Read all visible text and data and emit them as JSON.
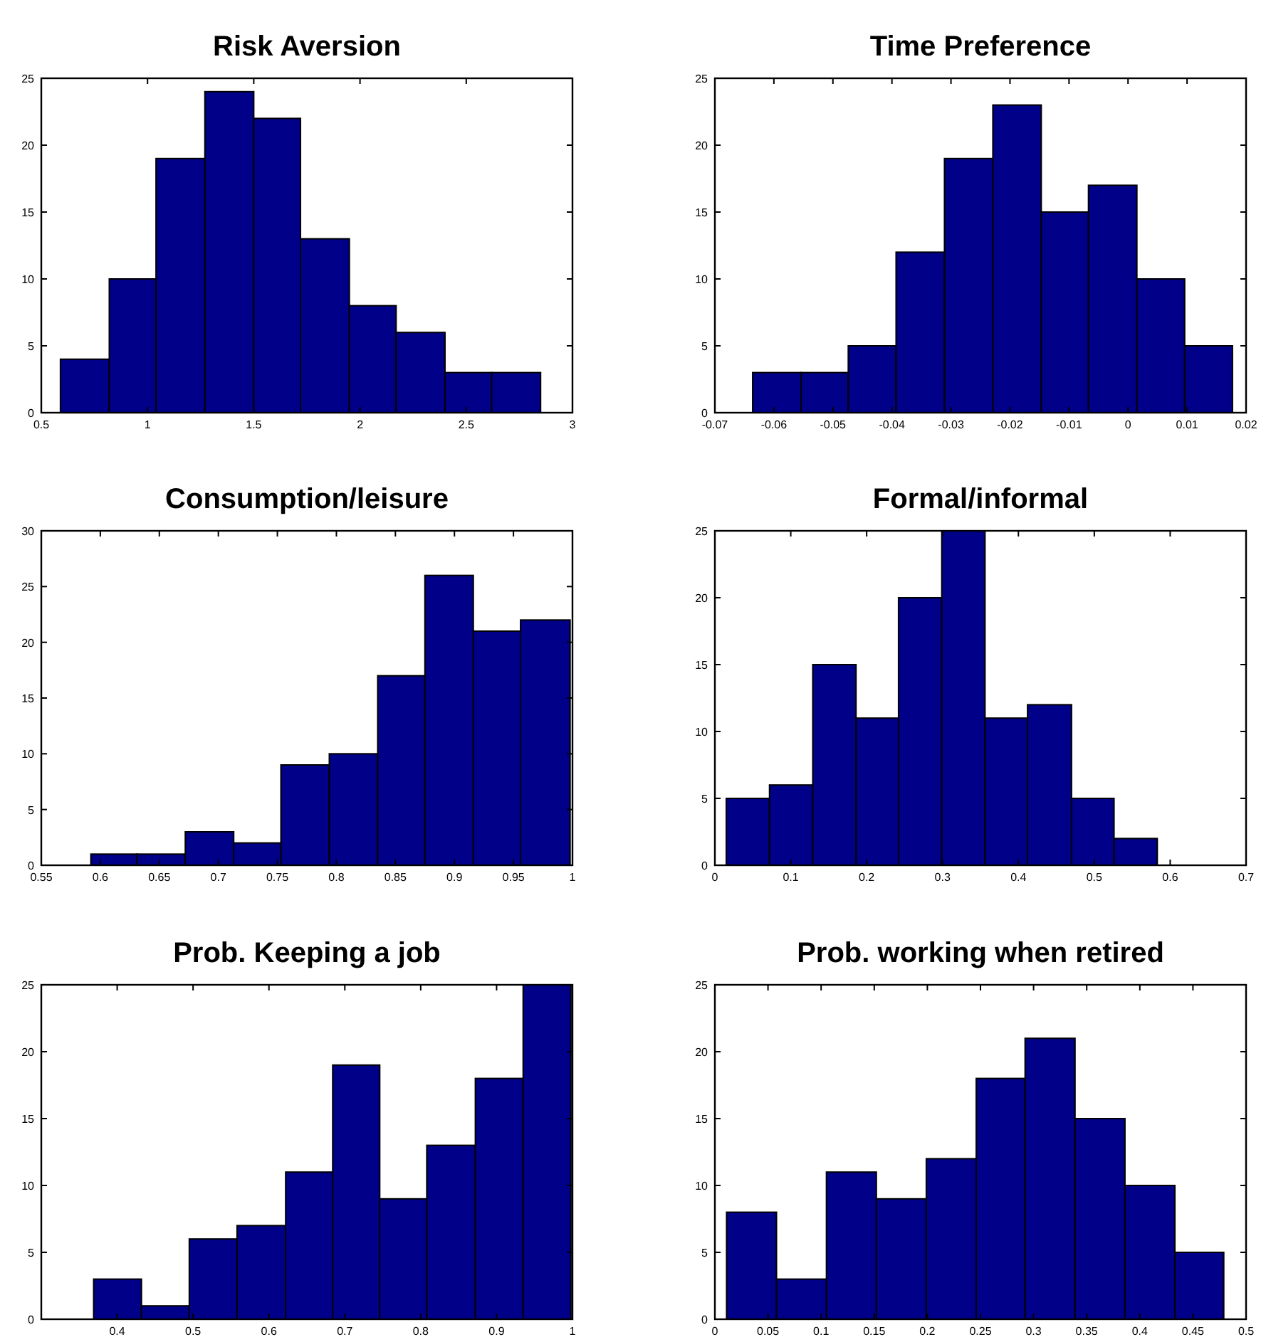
{
  "chart_data": [
    {
      "type": "histogram",
      "title": "Risk Aversion",
      "bins": [
        0.59,
        0.82,
        1.04,
        1.27,
        1.5,
        1.72,
        1.95,
        2.17,
        2.4,
        2.62,
        2.85
      ],
      "values": [
        4,
        10,
        19,
        24,
        22,
        13,
        8,
        6,
        3,
        3
      ],
      "color": "#000088",
      "xlim": [
        0.5,
        3
      ],
      "xticks": [
        0.5,
        1,
        1.5,
        2,
        2.5,
        3
      ],
      "ylim": [
        0,
        25
      ],
      "yticks": [
        0,
        5,
        10,
        15,
        20,
        25
      ]
    },
    {
      "type": "histogram",
      "title": "Time Preference",
      "bins": [
        -0.0636,
        -0.0554,
        -0.0474,
        -0.0393,
        -0.0311,
        -0.0229,
        -0.0147,
        -0.0067,
        0.0015,
        0.0096,
        0.0177
      ],
      "values": [
        3,
        3,
        5,
        12,
        19,
        23,
        15,
        17,
        10,
        5
      ],
      "color": "#000088",
      "xlim": [
        -0.07,
        0.02
      ],
      "xticks": [
        -0.07,
        -0.06,
        -0.05,
        -0.04,
        -0.03,
        -0.02,
        -0.01,
        0,
        0.01,
        0.02
      ],
      "ylim": [
        0,
        25
      ],
      "yticks": [
        0,
        5,
        10,
        15,
        20,
        25
      ]
    },
    {
      "type": "histogram",
      "title": "Consumption/leisure",
      "bins": [
        0.592,
        0.631,
        0.672,
        0.713,
        0.753,
        0.794,
        0.835,
        0.875,
        0.916,
        0.956,
        0.998
      ],
      "values": [
        1,
        1,
        3,
        2,
        9,
        10,
        17,
        26,
        21,
        22
      ],
      "color": "#000088",
      "xlim": [
        0.55,
        1
      ],
      "xticks": [
        0.55,
        0.6,
        0.65,
        0.7,
        0.75,
        0.8,
        0.85,
        0.9,
        0.95,
        1
      ],
      "ylim": [
        0,
        30
      ],
      "yticks": [
        0,
        5,
        10,
        15,
        20,
        25,
        30
      ]
    },
    {
      "type": "histogram",
      "title": "Formal/informal",
      "bins": [
        0.015,
        0.072,
        0.129,
        0.186,
        0.242,
        0.299,
        0.356,
        0.412,
        0.47,
        0.526,
        0.583
      ],
      "values": [
        5,
        6,
        15,
        11,
        20,
        25,
        11,
        12,
        5,
        2
      ],
      "color": "#000088",
      "xlim": [
        0,
        0.7
      ],
      "xticks": [
        0,
        0.1,
        0.2,
        0.3,
        0.4,
        0.5,
        0.6,
        0.7
      ],
      "ylim": [
        0,
        25
      ],
      "yticks": [
        0,
        5,
        10,
        15,
        20,
        25
      ]
    },
    {
      "type": "histogram",
      "title": "Prob. Keeping a job",
      "bins": [
        0.369,
        0.432,
        0.495,
        0.558,
        0.622,
        0.684,
        0.746,
        0.808,
        0.872,
        0.935,
        0.998
      ],
      "values": [
        3,
        1,
        6,
        7,
        11,
        19,
        9,
        13,
        18,
        25
      ],
      "color": "#000088",
      "xlim": [
        0.3,
        1
      ],
      "xticks": [
        0.4,
        0.5,
        0.6,
        0.7,
        0.8,
        0.9,
        1
      ],
      "ylim": [
        0,
        25
      ],
      "yticks": [
        0,
        5,
        10,
        15,
        20,
        25
      ]
    },
    {
      "type": "histogram",
      "title": "Prob. working when retired",
      "bins": [
        0.011,
        0.058,
        0.105,
        0.152,
        0.199,
        0.246,
        0.292,
        0.339,
        0.386,
        0.433,
        0.479
      ],
      "values": [
        8,
        3,
        11,
        9,
        12,
        18,
        21,
        15,
        10,
        5
      ],
      "color": "#000088",
      "xlim": [
        0,
        0.5
      ],
      "xticks": [
        0,
        0.05,
        0.1,
        0.15,
        0.2,
        0.25,
        0.3,
        0.35,
        0.4,
        0.45,
        0.5
      ],
      "ylim": [
        0,
        25
      ],
      "yticks": [
        0,
        5,
        10,
        15,
        20,
        25
      ]
    }
  ]
}
